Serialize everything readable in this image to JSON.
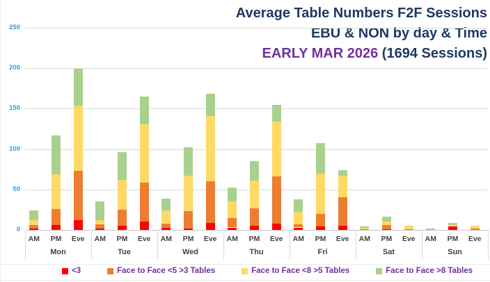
{
  "title": {
    "line1": "Average Table Numbers F2F Sessions",
    "line2": "EBU & NON  by day & Time",
    "line3_highlight": "EARLY MAR 2026",
    "line3_rest": " (1694 Sessions)"
  },
  "colors": {
    "title_navy": "#1F3864",
    "title_purple": "#7030A0",
    "y_axis_label_blue": "#2E9BD9",
    "axis_text_gray": "#424242",
    "gridline": "#D9D9D9",
    "legend_text_purple": "#7030A0"
  },
  "chart_data": {
    "type": "bar",
    "stacked": true,
    "days": [
      "Mon",
      "Tue",
      "Wed",
      "Thu",
      "Fri",
      "Sat",
      "Sun"
    ],
    "times": [
      "AM",
      "PM",
      "Eve"
    ],
    "categories": [
      "Mon AM",
      "Mon PM",
      "Mon Eve",
      "Tue AM",
      "Tue PM",
      "Tue Eve",
      "Wed AM",
      "Wed PM",
      "Wed Eve",
      "Thu AM",
      "Thu PM",
      "Thu Eve",
      "Fri AM",
      "Fri PM",
      "Fri Eve",
      "Sat AM",
      "Sat PM",
      "Sat Eve",
      "Sun AM",
      "Sun PM",
      "Sun Eve"
    ],
    "ylim": [
      0,
      250
    ],
    "yticks": [
      0,
      50,
      100,
      150,
      200,
      250
    ],
    "grid": true,
    "legend_position": "bottom",
    "series": [
      {
        "name": "<3",
        "color": "#FF0000",
        "values": [
          2,
          6,
          12,
          2,
          5,
          10,
          3,
          2,
          9,
          3,
          5,
          8,
          3,
          4,
          5,
          0,
          1,
          0,
          0,
          4,
          0
        ]
      },
      {
        "name": "Face to Face <5 >3 Tables",
        "color": "#ED7D31",
        "values": [
          4,
          20,
          61,
          5,
          20,
          48,
          5,
          21,
          51,
          12,
          22,
          58,
          4,
          16,
          35,
          1,
          5,
          1,
          0,
          0,
          2
        ]
      },
      {
        "name": "Face to Face <8 >5 Tables",
        "color": "#FFD966",
        "values": [
          6,
          43,
          81,
          5,
          37,
          73,
          16,
          44,
          81,
          20,
          34,
          68,
          15,
          50,
          27,
          2,
          4,
          4,
          0,
          2,
          3
        ]
      },
      {
        "name": "Face to Face >8 Tables",
        "color": "#A9D18E",
        "values": [
          12,
          48,
          45,
          23,
          34,
          34,
          15,
          35,
          27,
          17,
          24,
          21,
          16,
          37,
          7,
          1,
          6,
          0,
          2,
          3,
          0
        ]
      }
    ],
    "totals": [
      24,
      117,
      199,
      35,
      96,
      165,
      39,
      102,
      168,
      52,
      85,
      155,
      38,
      107,
      74,
      4,
      16,
      5,
      2,
      9,
      5
    ]
  }
}
